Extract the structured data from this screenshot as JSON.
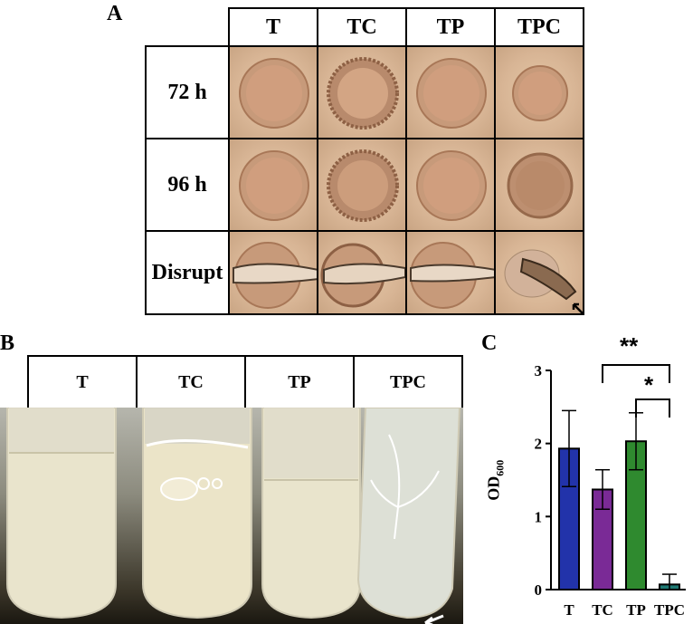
{
  "panel_a": {
    "letter": "A",
    "col_headers": [
      "T",
      "TC",
      "TP",
      "TPC"
    ],
    "row_headers": [
      "72 h",
      "96 h",
      "Disrupt"
    ]
  },
  "panel_b": {
    "letter": "B",
    "tube_labels": [
      "T",
      "TC",
      "TP",
      "TPC"
    ]
  },
  "panel_c": {
    "letter": "C",
    "sig_top": "**",
    "sig_bottom": "*"
  },
  "chart_data": {
    "type": "bar",
    "categories": [
      "T",
      "TC",
      "TP",
      "TPC"
    ],
    "values": [
      1.93,
      1.37,
      2.03,
      0.07
    ],
    "errors": [
      0.52,
      0.27,
      0.39,
      0.14
    ],
    "colors": [
      "#2233aa",
      "#7a2a96",
      "#2f8a2f",
      "#1f7a74"
    ],
    "ylabel": "OD600",
    "ylabel_main": "OD",
    "ylabel_sub": "600",
    "ylim": [
      0,
      3
    ],
    "yticks": [
      "0",
      "1",
      "2",
      "3"
    ],
    "significance": [
      {
        "from": "TC",
        "to": "TPC",
        "label": "**"
      },
      {
        "from": "TP",
        "to": "TPC",
        "label": "*"
      }
    ]
  }
}
